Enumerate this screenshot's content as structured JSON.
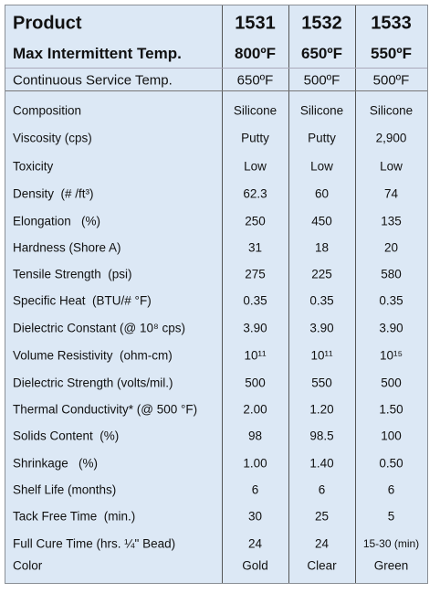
{
  "header": {
    "rows": [
      [
        "Product",
        "1531",
        "1532",
        "1533"
      ],
      [
        "Max Intermittent Temp.",
        "800ºF",
        "650ºF",
        "550ºF"
      ],
      [
        "Continuous Service Temp.",
        "650ºF",
        "500ºF",
        "500ºF"
      ]
    ]
  },
  "table": {
    "rows": [
      [
        "Composition",
        "Silicone",
        "Silicone",
        "Silicone"
      ],
      [
        "Viscosity (cps)",
        "Putty",
        "Putty",
        "2,900"
      ],
      [
        "Toxicity",
        "Low",
        "Low",
        "Low"
      ],
      [
        "Density  (# /ft³)",
        "62.3",
        "60",
        "74"
      ],
      [
        "Elongation   (%)",
        "250",
        "450",
        "135"
      ],
      [
        "Hardness (Shore A)",
        "31",
        "18",
        "20"
      ],
      [
        "Tensile Strength  (psi)",
        "275",
        "225",
        "580"
      ],
      [
        "Specific Heat  (BTU/# °F)",
        "0.35",
        "0.35",
        "0.35"
      ],
      [
        "Dielectric Constant (@ 10⁸ cps)",
        "3.90",
        "3.90",
        "3.90"
      ],
      [
        "Volume Resistivity  (ohm-cm)",
        "10¹¹",
        "10¹¹",
        "10¹⁵"
      ],
      [
        "Dielectric Strength (volts/mil.)",
        "500",
        "550",
        "500"
      ],
      [
        "Thermal Conductivity* (@ 500 °F)",
        "2.00",
        "1.20",
        "1.50"
      ],
      [
        "Solids Content  (%)",
        "98",
        "98.5",
        "100"
      ],
      [
        "Shrinkage   (%)",
        "1.00",
        "1.40",
        "0.50"
      ],
      [
        "Shelf Life (months)",
        "6",
        "6",
        "6"
      ],
      [
        "Tack Free Time  (min.)",
        "30",
        "25",
        "5"
      ],
      [
        "Full Cure Time (hrs. ¼\" Bead)",
        "24",
        "24",
        "15-30 (min)"
      ],
      [
        "Color",
        "Gold",
        "Clear",
        "Green"
      ]
    ]
  }
}
